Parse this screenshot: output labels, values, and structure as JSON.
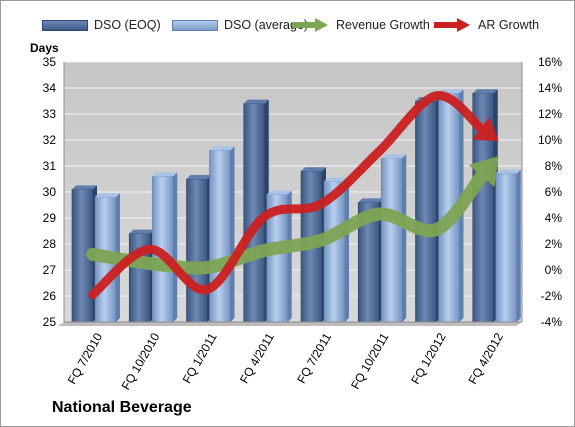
{
  "chart_data": {
    "type": "bar",
    "title": "National Beverage",
    "ylabel": "Days",
    "y2label": "",
    "ylim": [
      25,
      35
    ],
    "y2lim": [
      -4,
      16
    ],
    "yticks": [
      "25",
      "26",
      "27",
      "28",
      "29",
      "30",
      "31",
      "32",
      "33",
      "34",
      "35"
    ],
    "y2ticks": [
      "-4%",
      "-2%",
      "0%",
      "2%",
      "4%",
      "6%",
      "8%",
      "10%",
      "12%",
      "14%",
      "16%"
    ],
    "grid": true,
    "legend_position": "top",
    "categories": [
      "FQ 7/2010",
      "FQ 10/2010",
      "FQ 1/2011",
      "FQ 4/2011",
      "FQ 7/2011",
      "FQ 10/2011",
      "FQ 1/2012",
      "FQ 4/2012"
    ],
    "series": [
      {
        "name": "DSO (EOQ)",
        "type": "bar",
        "axis": "left",
        "color": "#4f6c99",
        "values": [
          30.1,
          28.4,
          30.5,
          33.4,
          30.8,
          29.6,
          33.5,
          33.8
        ]
      },
      {
        "name": "DSO (average)",
        "type": "bar",
        "axis": "left",
        "color": "#92b0da",
        "values": [
          29.8,
          30.6,
          31.6,
          29.9,
          30.4,
          31.3,
          33.8,
          30.7
        ]
      },
      {
        "name": "Revenue Growth",
        "type": "line",
        "axis": "right",
        "unit": "%",
        "color": "#7ea554",
        "values": [
          1.2,
          0.5,
          0.2,
          1.5,
          2.3,
          4.3,
          3.1,
          8.3
        ]
      },
      {
        "name": "AR Growth",
        "type": "line",
        "axis": "right",
        "unit": "%",
        "color": "#cc2020",
        "values": [
          -1.9,
          1.6,
          -1.5,
          4.1,
          5.1,
          9.1,
          13.4,
          10.2
        ]
      }
    ]
  }
}
